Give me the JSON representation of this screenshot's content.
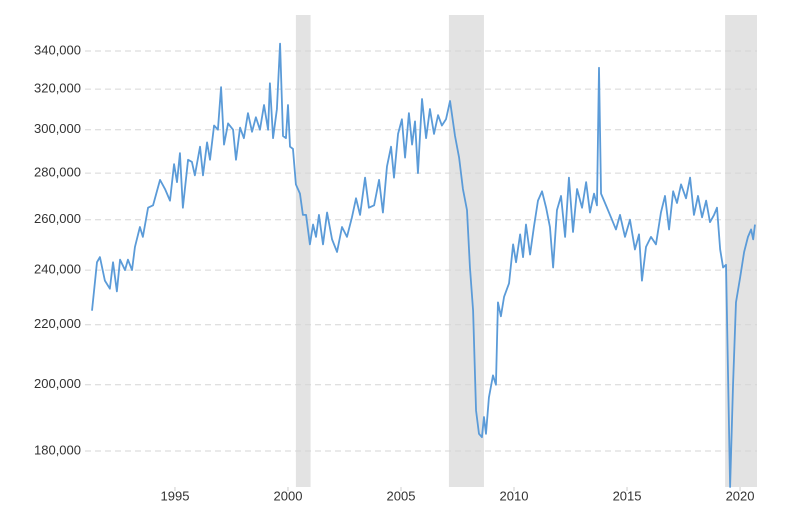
{
  "chart_data": {
    "type": "line",
    "log_y": true,
    "grid": true,
    "color": "#5b9bd8",
    "shade_color": "#e3e3e3",
    "xlim": [
      1991.02,
      2020.75
    ],
    "xticks": [
      1995,
      2000,
      2005,
      2010,
      2015,
      2020
    ],
    "ylim": [
      170000,
      360000
    ],
    "yticks": [
      {
        "value": 180000,
        "label": "180,000"
      },
      {
        "value": 200000,
        "label": "200,000"
      },
      {
        "value": 220000,
        "label": "220,000"
      },
      {
        "value": 240000,
        "label": "240,000"
      },
      {
        "value": 260000,
        "label": "260,000"
      },
      {
        "value": 280000,
        "label": "280,000"
      },
      {
        "value": 300000,
        "label": "300,000"
      },
      {
        "value": 320000,
        "label": "320,000"
      },
      {
        "value": 340000,
        "label": "340,000"
      }
    ],
    "shaded_regions": [
      [
        2000.35,
        2001.0
      ],
      [
        2007.12,
        2008.67
      ],
      [
        2019.34,
        2020.75
      ]
    ],
    "x": [
      1991.33,
      1991.55,
      1991.68,
      1991.9,
      1992.12,
      1992.26,
      1992.43,
      1992.57,
      1992.79,
      1992.92,
      1993.1,
      1993.23,
      1993.45,
      1993.58,
      1993.81,
      1994.03,
      1994.2,
      1994.34,
      1994.56,
      1994.78,
      1994.96,
      1995.09,
      1995.22,
      1995.35,
      1995.58,
      1995.75,
      1995.88,
      1996.11,
      1996.24,
      1996.42,
      1996.55,
      1996.73,
      1996.9,
      1997.04,
      1997.17,
      1997.35,
      1997.57,
      1997.7,
      1997.88,
      1998.05,
      1998.23,
      1998.41,
      1998.58,
      1998.76,
      1998.94,
      1999.12,
      1999.2,
      1999.34,
      1999.51,
      1999.65,
      1999.78,
      1999.91,
      2000.0,
      2000.09,
      2000.22,
      2000.35,
      2000.53,
      2000.66,
      2000.8,
      2000.97,
      2001.11,
      2001.24,
      2001.37,
      2001.55,
      2001.73,
      2001.95,
      2002.17,
      2002.39,
      2002.61,
      2002.83,
      2003.01,
      2003.19,
      2003.41,
      2003.58,
      2003.81,
      2004.03,
      2004.2,
      2004.38,
      2004.56,
      2004.69,
      2004.87,
      2005.04,
      2005.18,
      2005.35,
      2005.49,
      2005.62,
      2005.75,
      2005.93,
      2006.11,
      2006.28,
      2006.46,
      2006.64,
      2006.81,
      2006.99,
      2007.17,
      2007.39,
      2007.57,
      2007.74,
      2007.92,
      2008.05,
      2008.19,
      2008.32,
      2008.45,
      2008.58,
      2008.67,
      2008.76,
      2008.89,
      2009.07,
      2009.2,
      2009.29,
      2009.42,
      2009.56,
      2009.78,
      2009.96,
      2010.09,
      2010.27,
      2010.4,
      2010.53,
      2010.71,
      2010.88,
      2011.06,
      2011.24,
      2011.42,
      2011.59,
      2011.73,
      2011.9,
      2012.08,
      2012.26,
      2012.43,
      2012.61,
      2012.79,
      2013.01,
      2013.19,
      2013.36,
      2013.54,
      2013.67,
      2013.76,
      2013.85,
      2014.07,
      2014.29,
      2014.51,
      2014.69,
      2014.91,
      2015.13,
      2015.35,
      2015.53,
      2015.66,
      2015.84,
      2016.06,
      2016.28,
      2016.5,
      2016.68,
      2016.86,
      2017.04,
      2017.21,
      2017.39,
      2017.61,
      2017.79,
      2017.96,
      2018.14,
      2018.32,
      2018.5,
      2018.67,
      2018.85,
      2018.98,
      2019.12,
      2019.25,
      2019.38,
      2019.56,
      2019.69,
      2019.82,
      2020.0,
      2020.18,
      2020.35,
      2020.49,
      2020.58,
      2020.66
    ],
    "values": [
      225000,
      243000,
      245000,
      236000,
      233000,
      243000,
      232000,
      244000,
      240000,
      244000,
      240000,
      249000,
      257000,
      253000,
      265000,
      266000,
      272000,
      277000,
      273000,
      268000,
      284000,
      276000,
      289000,
      265000,
      286000,
      285000,
      279000,
      292000,
      279000,
      294000,
      286000,
      302000,
      300000,
      321000,
      293000,
      303000,
      300000,
      286000,
      301000,
      296000,
      308000,
      299000,
      306000,
      300000,
      312000,
      300000,
      323000,
      296000,
      310000,
      344000,
      297000,
      296000,
      312000,
      292000,
      291000,
      275000,
      271000,
      262000,
      262000,
      250000,
      258000,
      253000,
      262000,
      250000,
      263000,
      252000,
      247000,
      257000,
      253000,
      261000,
      269000,
      262000,
      278000,
      265000,
      266000,
      277000,
      263000,
      283000,
      292000,
      278000,
      298000,
      305000,
      287000,
      308000,
      293000,
      304000,
      280000,
      315000,
      296000,
      310000,
      298000,
      307000,
      302000,
      305000,
      314000,
      297000,
      287000,
      273000,
      264000,
      241000,
      225000,
      192000,
      185000,
      184000,
      190000,
      185000,
      196000,
      203000,
      200000,
      228000,
      223000,
      230000,
      235000,
      250000,
      243000,
      254000,
      245000,
      258000,
      246000,
      257000,
      268000,
      272000,
      265000,
      257000,
      241000,
      264000,
      270000,
      253000,
      278000,
      255000,
      273000,
      265000,
      276000,
      263000,
      271000,
      266000,
      331000,
      271000,
      266000,
      261000,
      256000,
      262000,
      253000,
      260000,
      248000,
      254000,
      236000,
      249000,
      253000,
      250000,
      263000,
      270000,
      256000,
      272000,
      267000,
      275000,
      269000,
      278000,
      262000,
      270000,
      261000,
      268000,
      259000,
      262000,
      265000,
      248000,
      241000,
      242000,
      170000,
      200000,
      228000,
      237000,
      247000,
      253000,
      256000,
      252000,
      258000
    ]
  }
}
